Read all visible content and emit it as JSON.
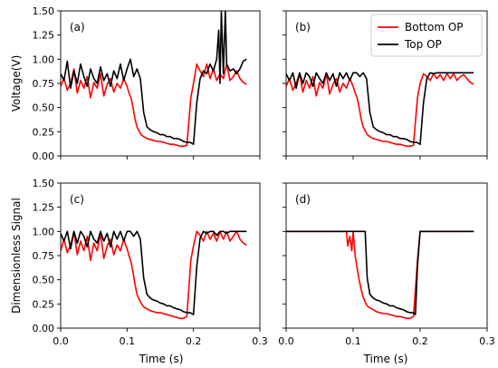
{
  "figure": {
    "xlabel": "Time (s)",
    "ylabel_top": "Voltage(V)",
    "ylabel_bottom": "Dimensionless Signal"
  },
  "legend": {
    "items": [
      {
        "label": "Bottom OP",
        "color": "#ff0000"
      },
      {
        "label": "Top OP",
        "color": "#000000"
      }
    ]
  },
  "chart_data": [
    {
      "type": "line",
      "panel_label": "(a)",
      "xlim": [
        0.0,
        0.3
      ],
      "ylim": [
        0.0,
        1.5
      ],
      "xticks": [
        "0.0",
        "0.1",
        "0.2",
        "0.3"
      ],
      "yticks": [
        "0.00",
        "0.25",
        "0.50",
        "0.75",
        "1.00",
        "1.25",
        "1.50"
      ],
      "series": [
        {
          "name": "Bottom OP",
          "color": "#ff0000",
          "x": [
            0.0,
            0.005,
            0.01,
            0.015,
            0.02,
            0.025,
            0.03,
            0.035,
            0.04,
            0.045,
            0.05,
            0.055,
            0.06,
            0.065,
            0.07,
            0.075,
            0.08,
            0.085,
            0.09,
            0.095,
            0.1,
            0.103,
            0.106,
            0.109,
            0.112,
            0.115,
            0.118,
            0.121,
            0.125,
            0.13,
            0.135,
            0.14,
            0.145,
            0.15,
            0.155,
            0.16,
            0.165,
            0.17,
            0.175,
            0.18,
            0.185,
            0.19,
            0.193,
            0.196,
            0.2,
            0.205,
            0.21,
            0.215,
            0.22,
            0.225,
            0.23,
            0.235,
            0.24,
            0.245,
            0.25,
            0.255,
            0.26,
            0.265,
            0.27,
            0.275,
            0.28
          ],
          "y": [
            0.72,
            0.8,
            0.68,
            0.75,
            0.9,
            0.65,
            0.78,
            0.7,
            0.82,
            0.6,
            0.76,
            0.7,
            0.85,
            0.62,
            0.74,
            0.8,
            0.66,
            0.75,
            0.7,
            0.8,
            0.72,
            0.65,
            0.6,
            0.5,
            0.38,
            0.3,
            0.26,
            0.22,
            0.2,
            0.18,
            0.17,
            0.16,
            0.15,
            0.15,
            0.14,
            0.13,
            0.12,
            0.12,
            0.11,
            0.1,
            0.1,
            0.11,
            0.35,
            0.6,
            0.75,
            0.95,
            0.88,
            0.82,
            0.95,
            0.8,
            0.9,
            0.78,
            0.85,
            0.8,
            0.95,
            0.78,
            0.82,
            0.88,
            0.8,
            0.76,
            0.74
          ]
        },
        {
          "name": "Top OP",
          "color": "#000000",
          "x": [
            0.0,
            0.005,
            0.01,
            0.015,
            0.02,
            0.025,
            0.03,
            0.035,
            0.04,
            0.045,
            0.05,
            0.055,
            0.06,
            0.065,
            0.07,
            0.075,
            0.08,
            0.085,
            0.09,
            0.095,
            0.1,
            0.105,
            0.11,
            0.115,
            0.12,
            0.125,
            0.13,
            0.135,
            0.14,
            0.145,
            0.15,
            0.155,
            0.16,
            0.165,
            0.17,
            0.175,
            0.18,
            0.185,
            0.19,
            0.195,
            0.2,
            0.205,
            0.21,
            0.215,
            0.22,
            0.225,
            0.23,
            0.235,
            0.238,
            0.24,
            0.242,
            0.245,
            0.248,
            0.25,
            0.255,
            0.26,
            0.265,
            0.27,
            0.275,
            0.28
          ],
          "y": [
            0.85,
            0.78,
            0.98,
            0.7,
            0.88,
            0.75,
            0.95,
            0.82,
            0.72,
            0.9,
            0.8,
            0.75,
            0.92,
            0.78,
            0.85,
            0.72,
            0.88,
            0.8,
            0.95,
            0.78,
            0.9,
            1.0,
            0.82,
            0.9,
            0.8,
            0.45,
            0.3,
            0.27,
            0.25,
            0.24,
            0.22,
            0.22,
            0.2,
            0.2,
            0.18,
            0.18,
            0.17,
            0.15,
            0.14,
            0.14,
            0.12,
            0.55,
            0.8,
            0.88,
            0.85,
            0.95,
            0.88,
            1.0,
            1.3,
            0.75,
            1.5,
            0.85,
            1.5,
            0.95,
            0.88,
            0.9,
            0.85,
            0.9,
            0.98,
            1.0
          ]
        }
      ]
    },
    {
      "type": "line",
      "panel_label": "(b)",
      "xlim": [
        0.0,
        0.3
      ],
      "ylim": [
        0.0,
        1.5
      ],
      "xticks": [
        "0.0",
        "0.1",
        "0.2",
        "0.3"
      ],
      "yticks": [
        "0.00",
        "0.25",
        "0.50",
        "0.75",
        "1.00",
        "1.25",
        "1.50"
      ],
      "series": [
        {
          "name": "Bottom OP",
          "color": "#ff0000",
          "x": [
            0.0,
            0.005,
            0.01,
            0.015,
            0.02,
            0.025,
            0.03,
            0.035,
            0.04,
            0.045,
            0.05,
            0.055,
            0.06,
            0.065,
            0.07,
            0.075,
            0.08,
            0.085,
            0.09,
            0.095,
            0.1,
            0.103,
            0.106,
            0.109,
            0.112,
            0.115,
            0.118,
            0.121,
            0.125,
            0.13,
            0.135,
            0.14,
            0.145,
            0.15,
            0.155,
            0.16,
            0.165,
            0.17,
            0.175,
            0.18,
            0.185,
            0.19,
            0.193,
            0.196,
            0.2,
            0.205,
            0.21,
            0.215,
            0.22,
            0.225,
            0.23,
            0.235,
            0.24,
            0.245,
            0.25,
            0.255,
            0.26,
            0.265,
            0.27,
            0.275,
            0.28
          ],
          "y": [
            0.72,
            0.8,
            0.68,
            0.75,
            0.85,
            0.66,
            0.78,
            0.7,
            0.82,
            0.62,
            0.76,
            0.7,
            0.85,
            0.64,
            0.74,
            0.8,
            0.66,
            0.75,
            0.7,
            0.8,
            0.72,
            0.65,
            0.6,
            0.5,
            0.38,
            0.3,
            0.26,
            0.22,
            0.2,
            0.18,
            0.17,
            0.16,
            0.15,
            0.15,
            0.14,
            0.13,
            0.12,
            0.12,
            0.11,
            0.1,
            0.1,
            0.11,
            0.35,
            0.6,
            0.75,
            0.85,
            0.82,
            0.78,
            0.85,
            0.8,
            0.84,
            0.78,
            0.85,
            0.8,
            0.85,
            0.78,
            0.82,
            0.84,
            0.8,
            0.76,
            0.74
          ]
        },
        {
          "name": "Top OP",
          "color": "#000000",
          "x": [
            0.0,
            0.005,
            0.01,
            0.015,
            0.02,
            0.025,
            0.03,
            0.035,
            0.04,
            0.045,
            0.05,
            0.055,
            0.06,
            0.065,
            0.07,
            0.075,
            0.08,
            0.085,
            0.09,
            0.095,
            0.1,
            0.105,
            0.11,
            0.115,
            0.12,
            0.125,
            0.13,
            0.135,
            0.14,
            0.145,
            0.15,
            0.155,
            0.16,
            0.165,
            0.17,
            0.175,
            0.18,
            0.185,
            0.19,
            0.195,
            0.2,
            0.205,
            0.21,
            0.215,
            0.22,
            0.225,
            0.23,
            0.235,
            0.24,
            0.245,
            0.25,
            0.255,
            0.26,
            0.265,
            0.27,
            0.275,
            0.28
          ],
          "y": [
            0.85,
            0.78,
            0.86,
            0.7,
            0.86,
            0.75,
            0.86,
            0.82,
            0.72,
            0.86,
            0.8,
            0.75,
            0.86,
            0.78,
            0.85,
            0.72,
            0.86,
            0.8,
            0.86,
            0.78,
            0.86,
            0.86,
            0.82,
            0.86,
            0.8,
            0.45,
            0.3,
            0.27,
            0.25,
            0.24,
            0.22,
            0.22,
            0.2,
            0.2,
            0.18,
            0.18,
            0.17,
            0.15,
            0.14,
            0.14,
            0.12,
            0.55,
            0.8,
            0.86,
            0.85,
            0.86,
            0.86,
            0.86,
            0.86,
            0.86,
            0.86,
            0.86,
            0.86,
            0.86,
            0.86,
            0.86,
            0.86
          ]
        }
      ]
    },
    {
      "type": "line",
      "panel_label": "(c)",
      "xlim": [
        0.0,
        0.3
      ],
      "ylim": [
        0.0,
        1.5
      ],
      "xticks": [
        "0.0",
        "0.1",
        "0.2",
        "0.3"
      ],
      "yticks": [
        "0.00",
        "0.25",
        "0.50",
        "0.75",
        "1.00",
        "1.25",
        "1.50"
      ],
      "series": [
        {
          "name": "Bottom OP",
          "color": "#ff0000",
          "x": [
            0.0,
            0.005,
            0.01,
            0.015,
            0.02,
            0.025,
            0.03,
            0.035,
            0.04,
            0.045,
            0.05,
            0.055,
            0.06,
            0.065,
            0.07,
            0.075,
            0.08,
            0.085,
            0.09,
            0.095,
            0.1,
            0.103,
            0.106,
            0.109,
            0.112,
            0.115,
            0.118,
            0.121,
            0.125,
            0.13,
            0.135,
            0.14,
            0.145,
            0.15,
            0.155,
            0.16,
            0.165,
            0.17,
            0.175,
            0.18,
            0.185,
            0.19,
            0.193,
            0.196,
            0.2,
            0.205,
            0.21,
            0.215,
            0.22,
            0.225,
            0.23,
            0.235,
            0.24,
            0.245,
            0.25,
            0.255,
            0.26,
            0.265,
            0.27,
            0.275,
            0.28
          ],
          "y": [
            0.8,
            0.92,
            0.78,
            0.86,
            1.0,
            0.76,
            0.9,
            0.8,
            0.95,
            0.7,
            0.88,
            0.8,
            0.98,
            0.72,
            0.85,
            0.92,
            0.76,
            0.86,
            0.8,
            0.92,
            0.82,
            0.75,
            0.68,
            0.58,
            0.45,
            0.35,
            0.3,
            0.26,
            0.22,
            0.2,
            0.18,
            0.17,
            0.16,
            0.16,
            0.15,
            0.14,
            0.13,
            0.12,
            0.11,
            0.1,
            0.1,
            0.12,
            0.4,
            0.7,
            0.85,
            1.0,
            0.96,
            0.9,
            1.0,
            0.92,
            0.98,
            0.9,
            1.0,
            0.92,
            1.0,
            0.9,
            0.95,
            1.0,
            0.92,
            0.88,
            0.86
          ]
        },
        {
          "name": "Top OP",
          "color": "#000000",
          "x": [
            0.0,
            0.005,
            0.01,
            0.015,
            0.02,
            0.025,
            0.03,
            0.035,
            0.04,
            0.045,
            0.05,
            0.055,
            0.06,
            0.065,
            0.07,
            0.075,
            0.08,
            0.085,
            0.09,
            0.095,
            0.1,
            0.105,
            0.11,
            0.115,
            0.12,
            0.125,
            0.13,
            0.135,
            0.14,
            0.145,
            0.15,
            0.155,
            0.16,
            0.165,
            0.17,
            0.175,
            0.18,
            0.185,
            0.19,
            0.195,
            0.2,
            0.205,
            0.21,
            0.215,
            0.22,
            0.225,
            0.23,
            0.235,
            0.24,
            0.245,
            0.25,
            0.255,
            0.26,
            0.265,
            0.27,
            0.275,
            0.28
          ],
          "y": [
            0.98,
            0.9,
            1.0,
            0.82,
            1.0,
            0.88,
            1.0,
            0.95,
            0.84,
            1.0,
            0.92,
            0.88,
            1.0,
            0.9,
            0.98,
            0.84,
            1.0,
            0.92,
            1.0,
            0.9,
            1.0,
            1.0,
            0.95,
            1.0,
            0.92,
            0.52,
            0.35,
            0.31,
            0.29,
            0.28,
            0.26,
            0.25,
            0.23,
            0.23,
            0.21,
            0.2,
            0.19,
            0.17,
            0.16,
            0.16,
            0.14,
            0.64,
            0.93,
            1.0,
            0.98,
            1.0,
            1.0,
            0.96,
            1.0,
            1.0,
            0.98,
            1.0,
            1.0,
            1.0,
            1.0,
            1.0,
            1.0
          ]
        }
      ]
    },
    {
      "type": "line",
      "panel_label": "(d)",
      "xlim": [
        0.0,
        0.3
      ],
      "ylim": [
        0.0,
        1.5
      ],
      "xticks": [
        "0.0",
        "0.1",
        "0.2",
        "0.3"
      ],
      "yticks": [
        "0.00",
        "0.25",
        "0.50",
        "0.75",
        "1.00",
        "1.25",
        "1.50"
      ],
      "series": [
        {
          "name": "Bottom OP",
          "color": "#ff0000",
          "x": [
            0.0,
            0.09,
            0.092,
            0.095,
            0.098,
            0.1,
            0.103,
            0.106,
            0.109,
            0.112,
            0.115,
            0.118,
            0.121,
            0.125,
            0.13,
            0.135,
            0.14,
            0.145,
            0.15,
            0.155,
            0.16,
            0.165,
            0.17,
            0.175,
            0.18,
            0.185,
            0.19,
            0.193,
            0.196,
            0.2,
            0.28
          ],
          "y": [
            1.0,
            1.0,
            0.85,
            0.95,
            0.8,
            1.0,
            0.75,
            0.62,
            0.5,
            0.4,
            0.32,
            0.27,
            0.23,
            0.21,
            0.19,
            0.17,
            0.16,
            0.15,
            0.15,
            0.14,
            0.13,
            0.12,
            0.12,
            0.11,
            0.1,
            0.1,
            0.12,
            0.4,
            0.7,
            1.0,
            1.0
          ]
        },
        {
          "name": "Top OP",
          "color": "#000000",
          "x": [
            0.0,
            0.118,
            0.121,
            0.125,
            0.13,
            0.135,
            0.14,
            0.145,
            0.15,
            0.155,
            0.16,
            0.165,
            0.17,
            0.175,
            0.18,
            0.185,
            0.19,
            0.193,
            0.196,
            0.2,
            0.28
          ],
          "y": [
            1.0,
            1.0,
            0.52,
            0.35,
            0.31,
            0.29,
            0.28,
            0.26,
            0.25,
            0.23,
            0.23,
            0.21,
            0.2,
            0.19,
            0.17,
            0.16,
            0.16,
            0.14,
            0.64,
            1.0,
            1.0
          ]
        }
      ]
    }
  ]
}
